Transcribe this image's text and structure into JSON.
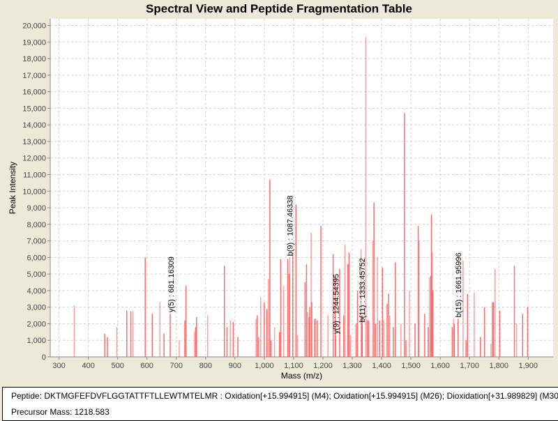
{
  "chart_data": {
    "type": "bar",
    "title": "Spectral View and Peptide Fragmentation Table",
    "xlabel": "Mass (m/z)",
    "ylabel": "Peak Intensity",
    "xlim": [
      270,
      1985
    ],
    "ylim": [
      0,
      20400
    ],
    "xticks": [
      300,
      400,
      500,
      600,
      700,
      800,
      900,
      1000,
      1100,
      1200,
      1300,
      1400,
      1500,
      1600,
      1700,
      1800,
      1900
    ],
    "xtick_labels": [
      "300",
      "400",
      "500",
      "600",
      "700",
      "800",
      "900",
      "1,000",
      "1,100",
      "1,200",
      "1,300",
      "1,400",
      "1,500",
      "1,600",
      "1,700",
      "1,800",
      "1,900"
    ],
    "yticks": [
      0,
      1000,
      2000,
      3000,
      4000,
      5000,
      6000,
      7000,
      8000,
      9000,
      10000,
      11000,
      12000,
      13000,
      14000,
      15000,
      16000,
      17000,
      18000,
      19000,
      20000
    ],
    "ytick_labels": [
      "0",
      "1,000",
      "2,000",
      "3,000",
      "4,000",
      "5,000",
      "6,000",
      "7,000",
      "8,000",
      "9,000",
      "10,000",
      "11,000",
      "12,000",
      "13,000",
      "14,000",
      "15,000",
      "16,000",
      "17,000",
      "18,000",
      "19,000",
      "20,000"
    ],
    "grid": true,
    "bar_color": "#ff5050",
    "peaks": [
      [
        352,
        3100
      ],
      [
        456,
        1400
      ],
      [
        465,
        1200
      ],
      [
        497,
        1800
      ],
      [
        531,
        2800
      ],
      [
        545,
        2750
      ],
      [
        552,
        2750
      ],
      [
        594,
        6000
      ],
      [
        618,
        2600
      ],
      [
        644,
        3300
      ],
      [
        658,
        1400
      ],
      [
        679,
        2600
      ],
      [
        710,
        1000
      ],
      [
        729,
        2200
      ],
      [
        733,
        4300
      ],
      [
        762,
        1500
      ],
      [
        766,
        1800
      ],
      [
        769,
        2400
      ],
      [
        807,
        2500
      ],
      [
        864,
        5500
      ],
      [
        873,
        1800
      ],
      [
        884,
        2200
      ],
      [
        894,
        2100
      ],
      [
        910,
        1200
      ],
      [
        972,
        2300
      ],
      [
        976,
        2500
      ],
      [
        981,
        1200
      ],
      [
        988,
        3600
      ],
      [
        1000,
        3300
      ],
      [
        1009,
        2900
      ],
      [
        1014,
        4700
      ],
      [
        1019,
        10700
      ],
      [
        1023,
        1000
      ],
      [
        1035,
        1800
      ],
      [
        1052,
        1500
      ],
      [
        1056,
        5900
      ],
      [
        1066,
        4300
      ],
      [
        1080,
        5900
      ],
      [
        1085,
        5000
      ],
      [
        1087,
        6000
      ],
      [
        1097,
        6300
      ],
      [
        1108,
        9200
      ],
      [
        1113,
        1300
      ],
      [
        1139,
        4500
      ],
      [
        1144,
        5600
      ],
      [
        1148,
        2700
      ],
      [
        1153,
        2400
      ],
      [
        1155,
        3000
      ],
      [
        1160,
        7500
      ],
      [
        1162,
        3300
      ],
      [
        1172,
        2300
      ],
      [
        1176,
        2300
      ],
      [
        1181,
        2200
      ],
      [
        1193,
        7900
      ],
      [
        1217,
        2500
      ],
      [
        1235,
        6200
      ],
      [
        1242,
        4800
      ],
      [
        1244,
        1300
      ],
      [
        1257,
        5300
      ],
      [
        1271,
        2500
      ],
      [
        1275,
        6800
      ],
      [
        1285,
        5600
      ],
      [
        1289,
        6300
      ],
      [
        1294,
        1300
      ],
      [
        1313,
        2000
      ],
      [
        1318,
        4000
      ],
      [
        1330,
        6500
      ],
      [
        1333,
        2000
      ],
      [
        1334,
        2500
      ],
      [
        1346,
        19300
      ],
      [
        1351,
        2200
      ],
      [
        1356,
        2200
      ],
      [
        1370,
        7000
      ],
      [
        1374,
        9300
      ],
      [
        1379,
        2000
      ],
      [
        1386,
        6000
      ],
      [
        1393,
        2200
      ],
      [
        1403,
        5400
      ],
      [
        1407,
        2200
      ],
      [
        1419,
        3200
      ],
      [
        1424,
        3800
      ],
      [
        1428,
        2500
      ],
      [
        1440,
        1800
      ],
      [
        1447,
        5700
      ],
      [
        1466,
        2000
      ],
      [
        1478,
        14700
      ],
      [
        1483,
        1000
      ],
      [
        1495,
        4000
      ],
      [
        1514,
        2000
      ],
      [
        1525,
        7900
      ],
      [
        1528,
        7000
      ],
      [
        1547,
        2600
      ],
      [
        1559,
        1800
      ],
      [
        1563,
        4800
      ],
      [
        1568,
        4900
      ],
      [
        1570,
        8600
      ],
      [
        1573,
        6300
      ],
      [
        1575,
        4000
      ],
      [
        1641,
        1800
      ],
      [
        1646,
        2300
      ],
      [
        1648,
        2000
      ],
      [
        1661,
        2300
      ],
      [
        1678,
        5800
      ],
      [
        1688,
        1000
      ],
      [
        1693,
        3800
      ],
      [
        1716,
        3900
      ],
      [
        1737,
        1200
      ],
      [
        1751,
        3000
      ],
      [
        1773,
        800
      ],
      [
        1778,
        3300
      ],
      [
        1782,
        3300
      ],
      [
        1787,
        5300
      ],
      [
        1803,
        2800
      ],
      [
        1853,
        5500
      ],
      [
        1860,
        2000
      ],
      [
        1881,
        2600
      ],
      [
        1898,
        3000
      ]
    ],
    "annotations": [
      {
        "label": "y(5) : 681.16309",
        "mz": 681.16309,
        "intensity": 2600
      },
      {
        "label": "b(9) : 1087.46338",
        "mz": 1087.46338,
        "intensity": 6000
      },
      {
        "label": "y(9) : 1244.54395",
        "mz": 1244.54395,
        "intensity": 1300
      },
      {
        "label": "b(11) : 1333.45752",
        "mz": 1333.45752,
        "intensity": 2000
      },
      {
        "label": "b(15) : 1661.95996",
        "mz": 1661.95996,
        "intensity": 2300
      }
    ]
  },
  "footer": {
    "peptide": "Peptide: DKTMGFEFDVFLGGTATTFTLLEWTMTELMR : Oxidation[+15.994915] (M4); Oxidation[+15.994915] (M26); Dioxidation[+31.989829] (M30",
    "precursor": "Precursor Mass: 1218.583"
  }
}
